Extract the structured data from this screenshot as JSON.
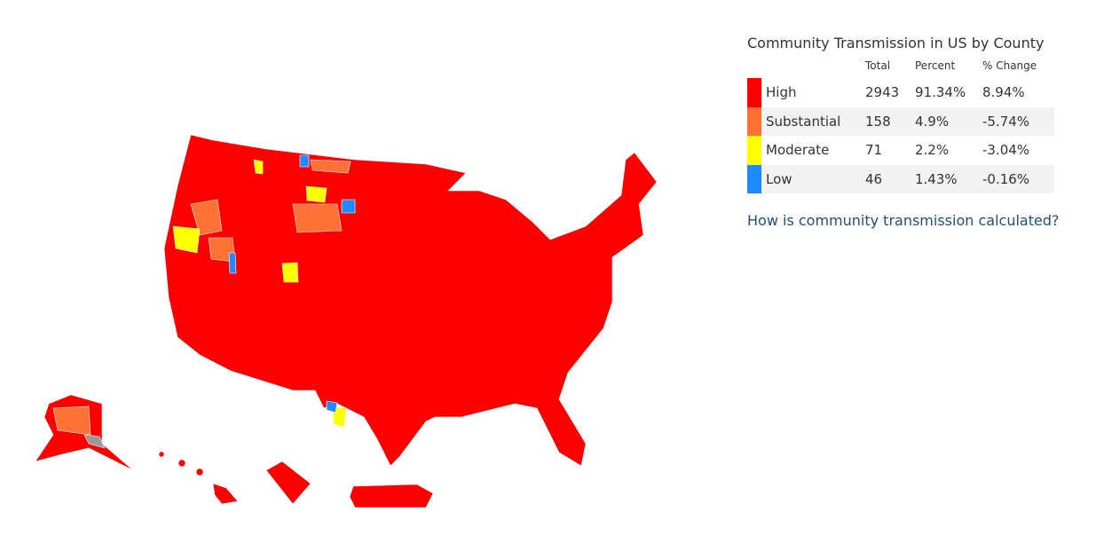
{
  "legend": {
    "title": "Community Transmission in US by County",
    "columns": [
      "Total",
      "Percent",
      "% Change"
    ],
    "rows": [
      {
        "label": "High",
        "color": "#ff0000",
        "total": "2943",
        "percent": "91.34%",
        "change": "8.94%"
      },
      {
        "label": "Substantial",
        "color": "#ff7134",
        "total": "158",
        "percent": "4.9%",
        "change": "-5.74%"
      },
      {
        "label": "Moderate",
        "color": "#ffff00",
        "total": "71",
        "percent": "2.2%",
        "change": "-3.04%"
      },
      {
        "label": "Low",
        "color": "#1d8aff",
        "total": "46",
        "percent": "1.43%",
        "change": "-0.16%"
      }
    ]
  },
  "link": "How is community transmission calculated?"
}
